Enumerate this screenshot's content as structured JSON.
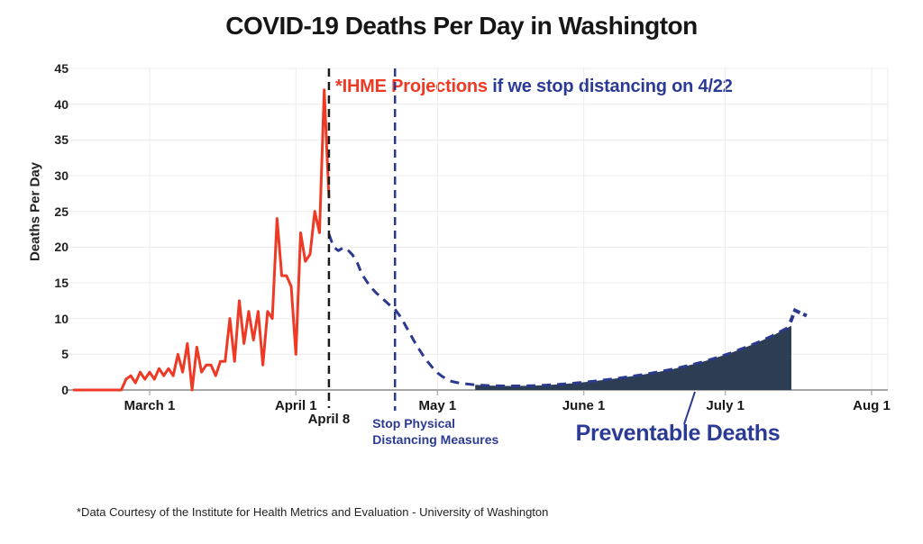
{
  "title": "COVID-19 Deaths Per Day in Washington",
  "annotation": {
    "highlight": "*IHME Projections",
    "rest": " if we stop distancing on 4/22"
  },
  "y_axis": {
    "label": "Deaths Per Day",
    "ticks": [
      0,
      5,
      10,
      15,
      20,
      25,
      30,
      35,
      40,
      45
    ],
    "max": 45
  },
  "x_axis": {
    "ticks": [
      {
        "label": "March 1",
        "day": 16
      },
      {
        "label": "April 1",
        "day": 47
      },
      {
        "label": "May 1",
        "day": 77
      },
      {
        "label": "June 1",
        "day": 108
      },
      {
        "label": "July 1",
        "day": 138
      },
      {
        "label": "Aug 1",
        "day": 169
      }
    ]
  },
  "markers": {
    "april8": {
      "label": "April 8",
      "day": 54
    },
    "stop_distancing": {
      "label_line1": "Stop Physical",
      "label_line2": "Distancing Measures",
      "day": 68
    }
  },
  "footer": "*Data Courtesy of the Institute for Health Metrics and Evaluation - University of Washington",
  "colors": {
    "red": "#ee3a24",
    "navy_text": "#2b3a94",
    "navy_line": "#2b3a8f",
    "area_fill": "#2d3e54",
    "grid": "#ececec",
    "axis": "#a6a6a6",
    "tick_stub": "#b5b5b5",
    "black": "#1a1a1a"
  },
  "chart_data": {
    "type": "line",
    "title": "COVID-19 Deaths Per Day in Washington",
    "ylabel": "Deaths Per Day",
    "ylim": [
      0,
      45
    ],
    "x_unit": "day index, day 0 = Feb 14 2020 (day 16 = March 1)",
    "grid": true,
    "series": [
      {
        "name": "Actual deaths per day",
        "style": "solid",
        "color": "#ee3a24",
        "start_day": 0,
        "values": [
          0,
          0,
          0,
          0,
          0,
          0,
          0,
          0,
          0,
          0,
          0,
          1.5,
          2,
          1,
          2.5,
          1.5,
          2.5,
          1.5,
          3,
          2,
          3,
          2,
          5,
          2.5,
          6.5,
          0,
          6,
          2.5,
          3.5,
          3.5,
          2,
          4,
          4,
          10,
          4,
          12.5,
          6.5,
          11,
          7,
          11,
          3.5,
          11,
          10,
          24,
          16,
          16,
          14.5,
          5,
          22,
          18,
          19,
          25,
          22,
          42,
          27
        ]
      },
      {
        "name": "IHME projection if distancing stops on 4/22",
        "style": "dashed",
        "color": "#2b3a8f",
        "points": [
          [
            54,
            21.8
          ],
          [
            55,
            20.0
          ],
          [
            56,
            19.5
          ],
          [
            57,
            19.9
          ],
          [
            58,
            19.6
          ],
          [
            59,
            18.9
          ],
          [
            60,
            17.8
          ],
          [
            61,
            16.2
          ],
          [
            62,
            15.2
          ],
          [
            63,
            14.3
          ],
          [
            64,
            13.6
          ],
          [
            65,
            13.0
          ],
          [
            66,
            12.4
          ],
          [
            67,
            11.8
          ],
          [
            68,
            11.3
          ],
          [
            69,
            10.4
          ],
          [
            70,
            9.3
          ],
          [
            71,
            8.1
          ],
          [
            72,
            6.9
          ],
          [
            73,
            5.8
          ],
          [
            74,
            4.8
          ],
          [
            75,
            3.9
          ],
          [
            76,
            3.1
          ],
          [
            77,
            2.4
          ],
          [
            78,
            1.9
          ],
          [
            79,
            1.5
          ],
          [
            80,
            1.2
          ],
          [
            82,
            0.92
          ],
          [
            85,
            0.72
          ],
          [
            88,
            0.62
          ],
          [
            91,
            0.57
          ],
          [
            94,
            0.56
          ],
          [
            97,
            0.6
          ],
          [
            100,
            0.68
          ],
          [
            103,
            0.8
          ],
          [
            106,
            0.96
          ],
          [
            109,
            1.15
          ],
          [
            112,
            1.38
          ],
          [
            115,
            1.62
          ],
          [
            118,
            1.9
          ],
          [
            121,
            2.2
          ],
          [
            124,
            2.55
          ],
          [
            127,
            2.95
          ],
          [
            130,
            3.4
          ],
          [
            133,
            3.9
          ],
          [
            136,
            4.5
          ],
          [
            139,
            5.15
          ],
          [
            142,
            5.9
          ],
          [
            145,
            6.7
          ],
          [
            148,
            7.6
          ],
          [
            150,
            8.3
          ],
          [
            152,
            9.0
          ]
        ]
      }
    ],
    "preventable_area": {
      "label": "Preventable Deaths",
      "from_day": 85,
      "to_day": 152,
      "fill": "#2d3e54"
    },
    "vlines": [
      {
        "label": "April 8",
        "day": 54,
        "color": "#1a1a1a",
        "style": "dashed"
      },
      {
        "label": "Stop Physical Distancing Measures",
        "day": 68,
        "color": "#2b3a8f",
        "style": "dashed"
      }
    ]
  }
}
